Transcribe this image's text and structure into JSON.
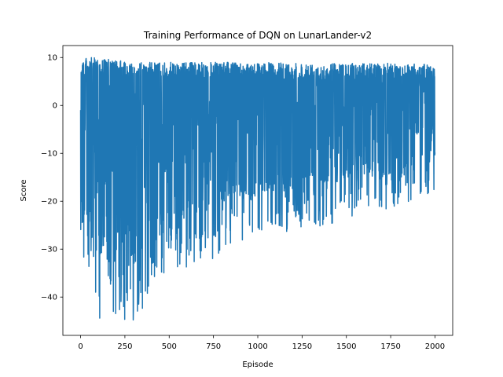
{
  "chart_data": {
    "type": "line",
    "title": "Training Performance of DQN on LunarLander-v2",
    "xlabel": "Episode",
    "ylabel": "Score",
    "xlim": [
      -100,
      2100
    ],
    "ylim": [
      -48,
      12.5
    ],
    "xticks": [
      0,
      250,
      500,
      750,
      1000,
      1250,
      1500,
      1750,
      2000
    ],
    "yticks": [
      -40,
      -30,
      -20,
      -10,
      0,
      10
    ],
    "grid": false,
    "legend": "none",
    "series_color": "#1f77b4",
    "series": [
      {
        "x_start": 0,
        "x_end": 2000,
        "n_points": 2001,
        "generation": "noisy envelope: upper bound rises from ~8 early to ~9 late, lower bound rises from ~-45 early to ~-18 late",
        "envelope": [
          {
            "x": 0,
            "low": -38,
            "high": 10
          },
          {
            "x": 70,
            "low": -45,
            "high": 10
          },
          {
            "x": 300,
            "low": -45,
            "high": 9
          },
          {
            "x": 500,
            "low": -35,
            "high": 9
          },
          {
            "x": 750,
            "low": -32,
            "high": 9
          },
          {
            "x": 1000,
            "low": -27,
            "high": 9
          },
          {
            "x": 1250,
            "low": -26,
            "high": 8.8
          },
          {
            "x": 1500,
            "low": -24,
            "high": 8.8
          },
          {
            "x": 1750,
            "low": -22,
            "high": 8.8
          },
          {
            "x": 2000,
            "low": -18,
            "high": 8.5
          }
        ]
      }
    ]
  }
}
